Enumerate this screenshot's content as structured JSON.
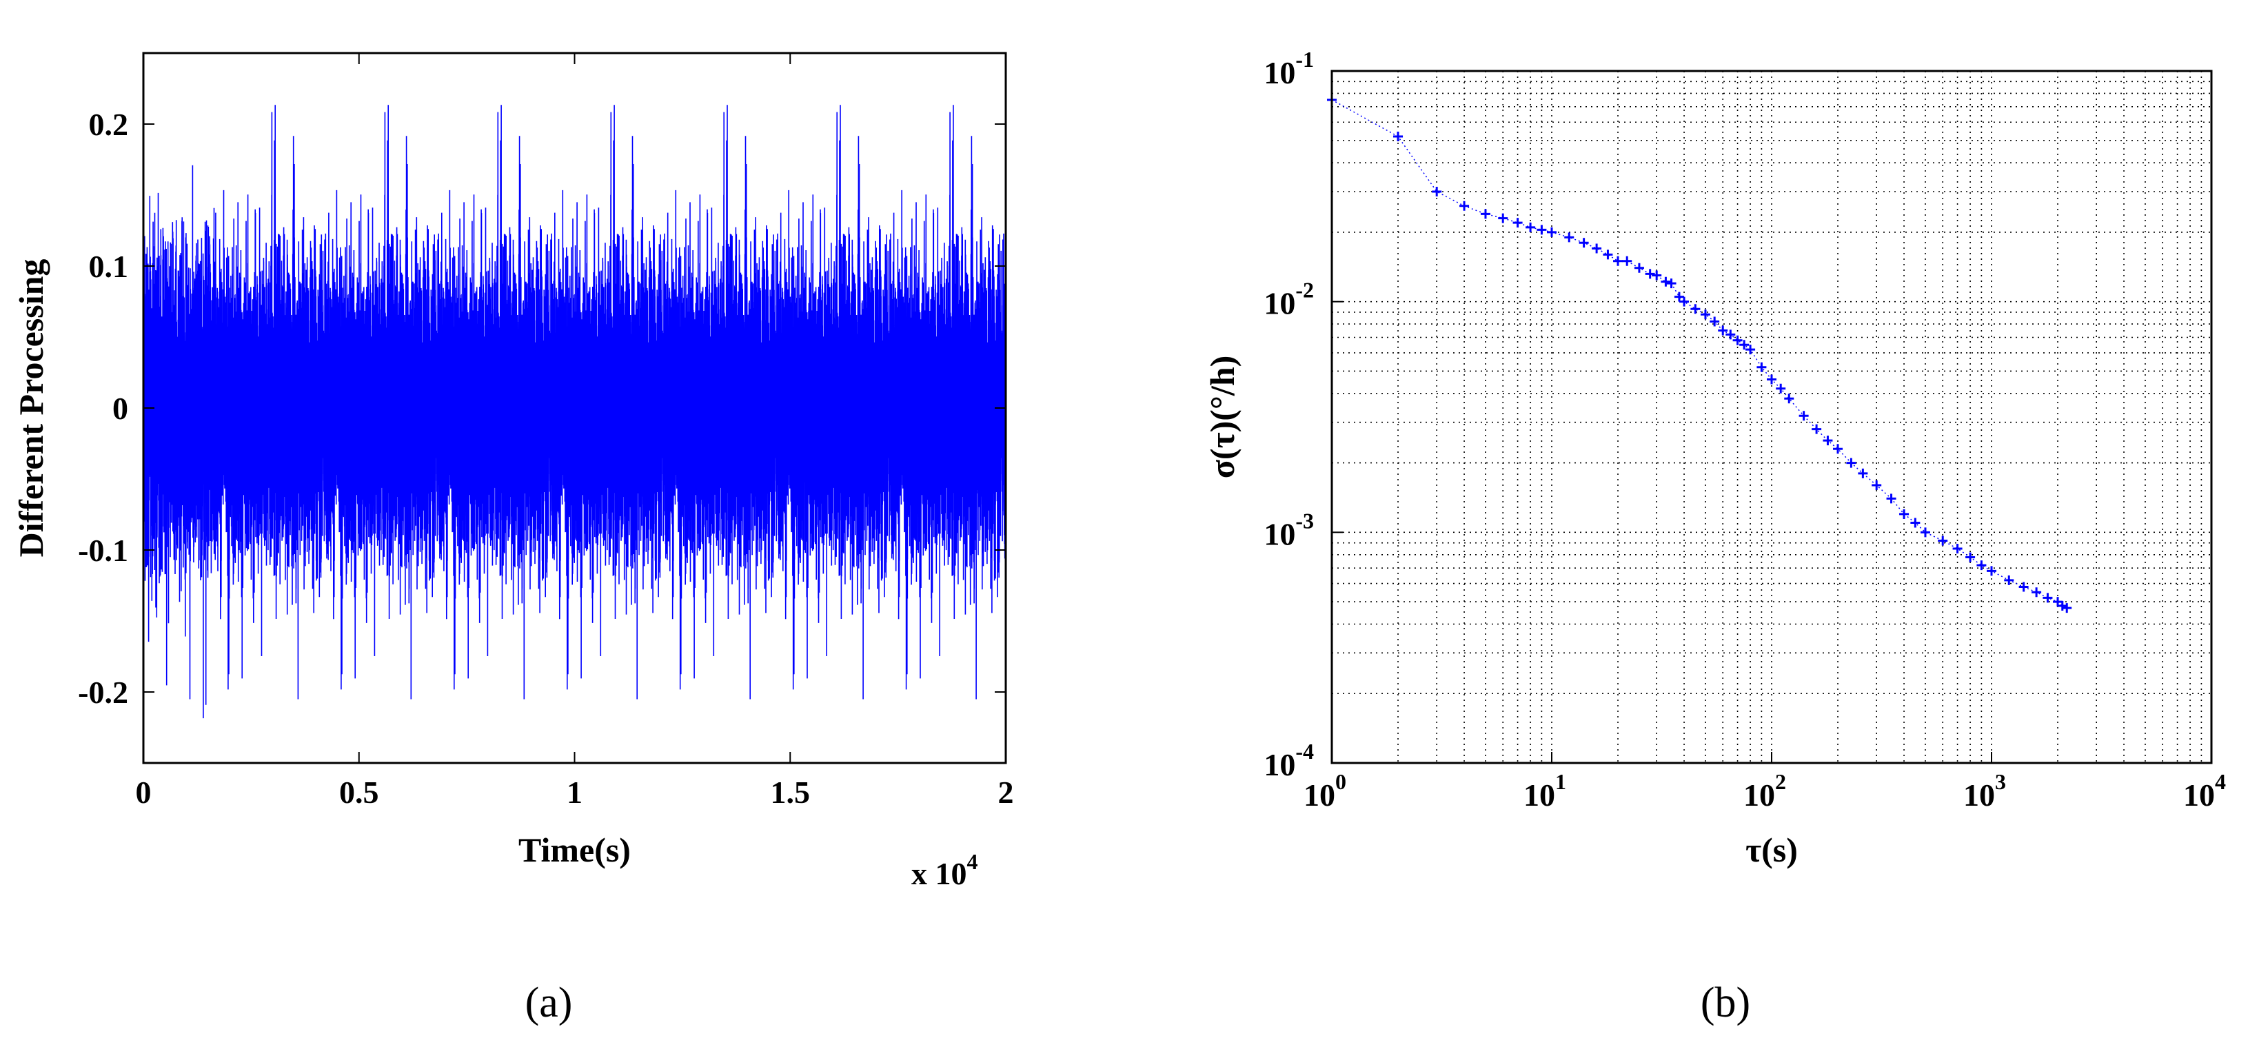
{
  "chart_data": [
    {
      "type": "line",
      "xlabel": "Time(s)",
      "ylabel": "Different Processing",
      "x_multiplier": "x 10",
      "x_multiplier_exp": "4",
      "xlim": [
        0,
        20000
      ],
      "ylim": [
        -0.25,
        0.25
      ],
      "xticks": [
        0,
        5000,
        10000,
        15000,
        20000
      ],
      "xtick_labels": [
        "0",
        "0.5",
        "1",
        "1.5",
        "2"
      ],
      "yticks": [
        0.2,
        0.1,
        0,
        -0.1,
        -0.2
      ],
      "ytick_labels": [
        "0.2",
        "0.1",
        "0",
        "-0.1",
        "-0.2"
      ],
      "grid": false,
      "series_color": "#0000ff",
      "signal": {
        "description": "dense zero-mean noise",
        "samples": 20000,
        "x_range": [
          0,
          20000
        ],
        "core_amplitude": [
          -0.13,
          0.13
        ],
        "peak_range": [
          -0.22,
          0.22
        ]
      },
      "panel_label": "(a)"
    },
    {
      "type": "scatter",
      "xscale": "log",
      "yscale": "log",
      "xlabel": "τ(s)",
      "ylabel": "σ(τ)(°/h)",
      "xlim": [
        1,
        10000
      ],
      "ylim": [
        0.0001,
        0.1
      ],
      "xtick_labels": [
        {
          "base": "10",
          "exp": "0"
        },
        {
          "base": "10",
          "exp": "1"
        },
        {
          "base": "10",
          "exp": "2"
        },
        {
          "base": "10",
          "exp": "3"
        },
        {
          "base": "10",
          "exp": "4"
        }
      ],
      "ytick_labels": [
        {
          "base": "10",
          "exp": "-1"
        },
        {
          "base": "10",
          "exp": "-2"
        },
        {
          "base": "10",
          "exp": "-3"
        },
        {
          "base": "10",
          "exp": "-4"
        }
      ],
      "grid": true,
      "marker": "+",
      "series_color": "#0000ff",
      "points": [
        [
          1,
          0.075
        ],
        [
          2,
          0.052
        ],
        [
          3,
          0.03
        ],
        [
          4,
          0.026
        ],
        [
          5,
          0.024
        ],
        [
          6,
          0.023
        ],
        [
          7,
          0.022
        ],
        [
          8,
          0.021
        ],
        [
          9,
          0.0205
        ],
        [
          10,
          0.02
        ],
        [
          12,
          0.019
        ],
        [
          14,
          0.018
        ],
        [
          16,
          0.017
        ],
        [
          18,
          0.016
        ],
        [
          20,
          0.015
        ],
        [
          22,
          0.015
        ],
        [
          25,
          0.014
        ],
        [
          28,
          0.0132
        ],
        [
          30,
          0.013
        ],
        [
          33,
          0.0122
        ],
        [
          35,
          0.012
        ],
        [
          38,
          0.0105
        ],
        [
          40,
          0.01
        ],
        [
          45,
          0.0093
        ],
        [
          50,
          0.0088
        ],
        [
          55,
          0.0082
        ],
        [
          60,
          0.0075
        ],
        [
          65,
          0.0072
        ],
        [
          70,
          0.0068
        ],
        [
          75,
          0.0065
        ],
        [
          80,
          0.0062
        ],
        [
          90,
          0.0052
        ],
        [
          100,
          0.0046
        ],
        [
          110,
          0.0042
        ],
        [
          120,
          0.0038
        ],
        [
          140,
          0.0032
        ],
        [
          160,
          0.0028
        ],
        [
          180,
          0.0025
        ],
        [
          200,
          0.0023
        ],
        [
          230,
          0.002
        ],
        [
          260,
          0.0018
        ],
        [
          300,
          0.0016
        ],
        [
          350,
          0.0014
        ],
        [
          400,
          0.0012
        ],
        [
          450,
          0.0011
        ],
        [
          500,
          0.001
        ],
        [
          600,
          0.00092
        ],
        [
          700,
          0.00085
        ],
        [
          800,
          0.00078
        ],
        [
          900,
          0.00072
        ],
        [
          1000,
          0.00068
        ],
        [
          1200,
          0.00062
        ],
        [
          1400,
          0.00058
        ],
        [
          1600,
          0.00055
        ],
        [
          1800,
          0.00052
        ],
        [
          2000,
          0.0005
        ],
        [
          2100,
          0.00048
        ],
        [
          2200,
          0.00047
        ]
      ],
      "panel_label": "(b)"
    }
  ]
}
